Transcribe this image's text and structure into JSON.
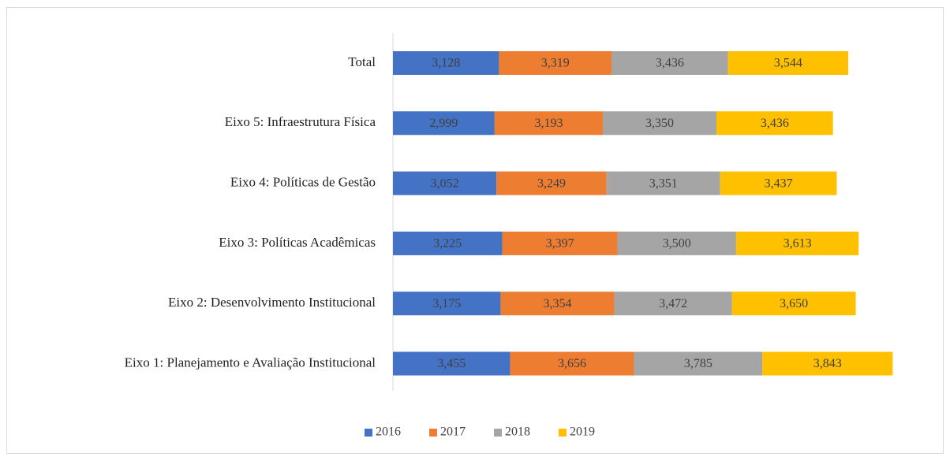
{
  "chart_data": {
    "type": "stacked-bar-horizontal",
    "categories": [
      "Eixo 1: Planejamento e Avaliação Institucional",
      "Eixo 2: Desenvolvimento Institucional",
      "Eixo 3: Políticas Acadêmicas",
      "Eixo 4: Políticas de Gestão",
      "Eixo 5: Infraestrutura Física",
      "Total"
    ],
    "series": [
      {
        "name": "2016",
        "color": "#4472c4",
        "values": [
          3.455,
          3.175,
          3.225,
          3.052,
          2.999,
          3.128
        ],
        "value_labels": [
          "3,455",
          "3,175",
          "3,225",
          "3,052",
          "2,999",
          "3,128"
        ]
      },
      {
        "name": "2017",
        "color": "#ed7d31",
        "values": [
          3.656,
          3.354,
          3.397,
          3.249,
          3.193,
          3.319
        ],
        "value_labels": [
          "3,656",
          "3,354",
          "3,397",
          "3,249",
          "3,193",
          "3,319"
        ]
      },
      {
        "name": "2018",
        "color": "#a5a5a5",
        "values": [
          3.785,
          3.472,
          3.5,
          3.351,
          3.35,
          3.436
        ],
        "value_labels": [
          "3,785",
          "3,472",
          "3,500",
          "3,351",
          "3,350",
          "3,436"
        ]
      },
      {
        "name": "2019",
        "color": "#ffc000",
        "values": [
          3.843,
          3.65,
          3.613,
          3.437,
          3.436,
          3.544
        ],
        "value_labels": [
          "3,843",
          "3,650",
          "3,613",
          "3,437",
          "3,436",
          "3,544"
        ]
      }
    ],
    "legend": "bottom"
  }
}
